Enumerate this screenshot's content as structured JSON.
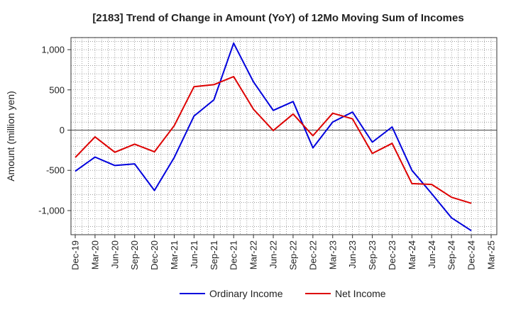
{
  "chart_data": {
    "type": "line",
    "title": "[2183]  Trend of Change in Amount (YoY) of 12Mo Moving Sum of Incomes",
    "xlabel": "",
    "ylabel": "Amount (million yen)",
    "ylim": [
      -1300,
      1150
    ],
    "yticks": [
      1000,
      500,
      0,
      -500,
      -1000
    ],
    "ytick_labels": [
      "1,000",
      "500",
      "0",
      "-500",
      "-1,000"
    ],
    "categories": [
      "Dec-19",
      "Mar-20",
      "Jun-20",
      "Sep-20",
      "Dec-20",
      "Mar-21",
      "Jun-21",
      "Sep-21",
      "Dec-21",
      "Mar-22",
      "Jun-22",
      "Sep-22",
      "Dec-22",
      "Mar-23",
      "Jun-23",
      "Sep-23",
      "Dec-23",
      "Mar-24",
      "Jun-24",
      "Sep-24",
      "Dec-24",
      "Mar-25"
    ],
    "grid": true,
    "legend_position": "bottom",
    "series": [
      {
        "name": "Ordinary Income",
        "color": "#0000dd",
        "values": [
          -510,
          -335,
          -440,
          -420,
          -750,
          -340,
          175,
          375,
          1080,
          600,
          245,
          355,
          -220,
          100,
          225,
          -150,
          40,
          -500,
          -790,
          -1090,
          -1250,
          null
        ]
      },
      {
        "name": "Net Income",
        "color": "#dd0000",
        "values": [
          -340,
          -85,
          -275,
          -175,
          -270,
          55,
          540,
          565,
          665,
          260,
          -5,
          200,
          -70,
          210,
          140,
          -290,
          -165,
          -665,
          -675,
          -835,
          -910,
          null
        ]
      }
    ]
  }
}
